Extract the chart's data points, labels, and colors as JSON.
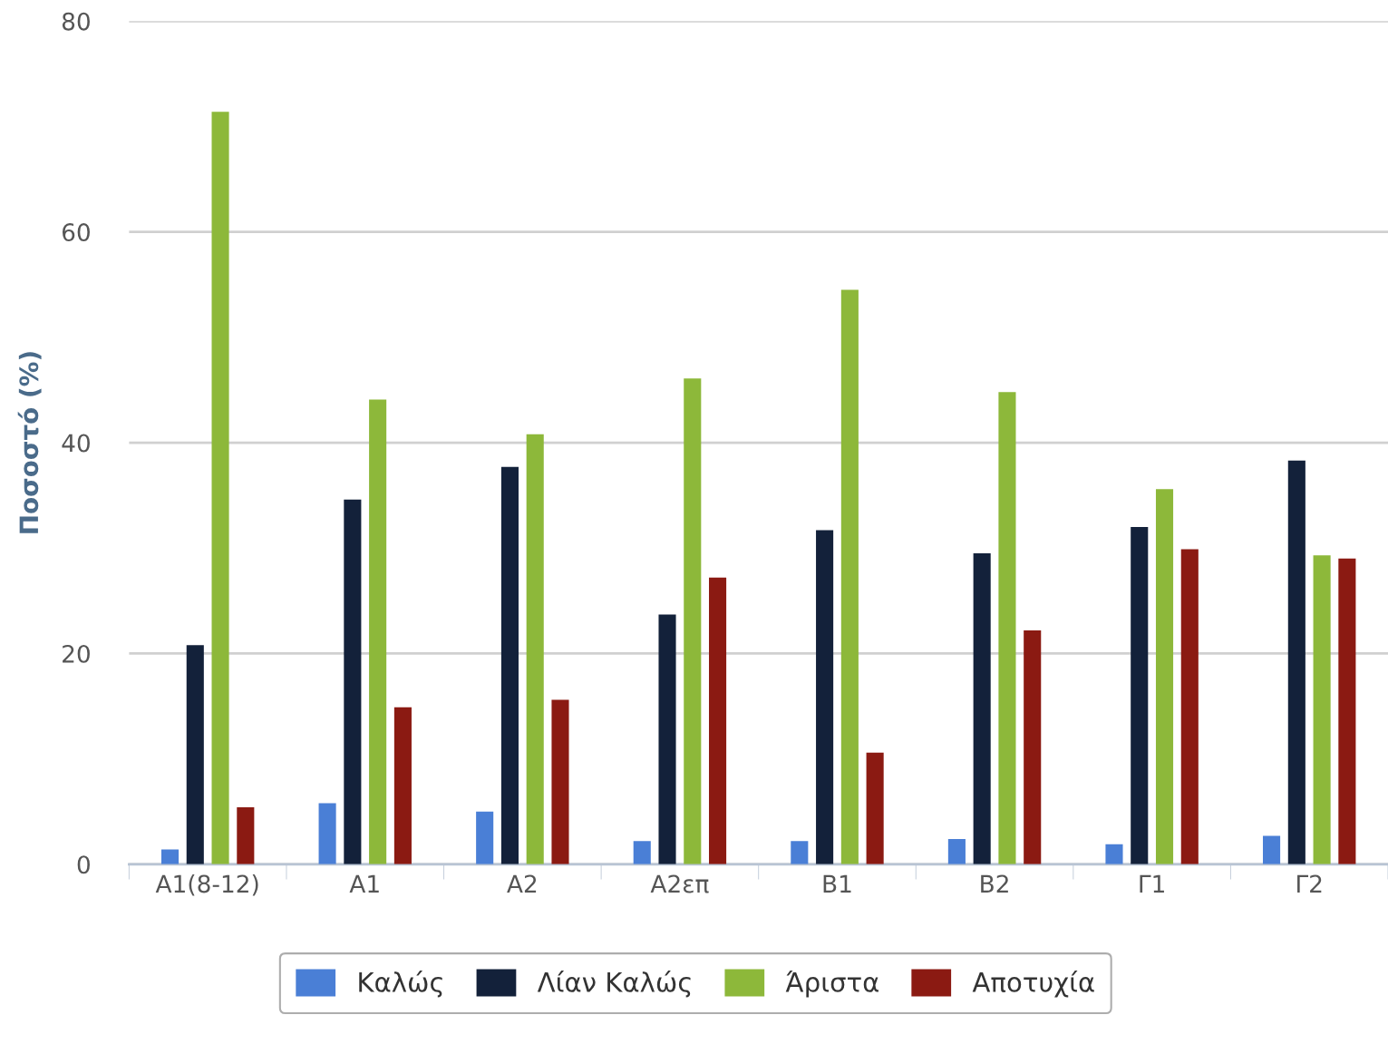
{
  "chart_data": {
    "type": "bar",
    "ylabel": "Ποσοστό (%)",
    "categories": [
      "Α1(8-12)",
      "Α1",
      "Α2",
      "Α2επ",
      "Β1",
      "Β2",
      "Γ1",
      "Γ2"
    ],
    "series": [
      {
        "name": "Καλώς",
        "color": "#4a7fd6",
        "values": [
          1.4,
          5.8,
          5.0,
          2.2,
          2.2,
          2.4,
          1.9,
          2.7
        ]
      },
      {
        "name": "Λίαν Καλώς",
        "color": "#13213a",
        "values": [
          20.8,
          34.6,
          37.7,
          23.7,
          31.7,
          29.5,
          32.0,
          38.3
        ]
      },
      {
        "name": "Άριστα",
        "color": "#8db83a",
        "values": [
          71.4,
          44.1,
          40.8,
          46.1,
          54.5,
          44.8,
          35.6,
          29.3
        ]
      },
      {
        "name": "Αποτυχία",
        "color": "#8b1a12",
        "values": [
          5.4,
          14.9,
          15.6,
          27.2,
          10.6,
          22.2,
          29.9,
          29.0
        ]
      }
    ],
    "ylim": [
      0,
      80
    ],
    "yticks": [
      0,
      20,
      40,
      60,
      80
    ],
    "grid": "y",
    "legend": "bottom"
  }
}
